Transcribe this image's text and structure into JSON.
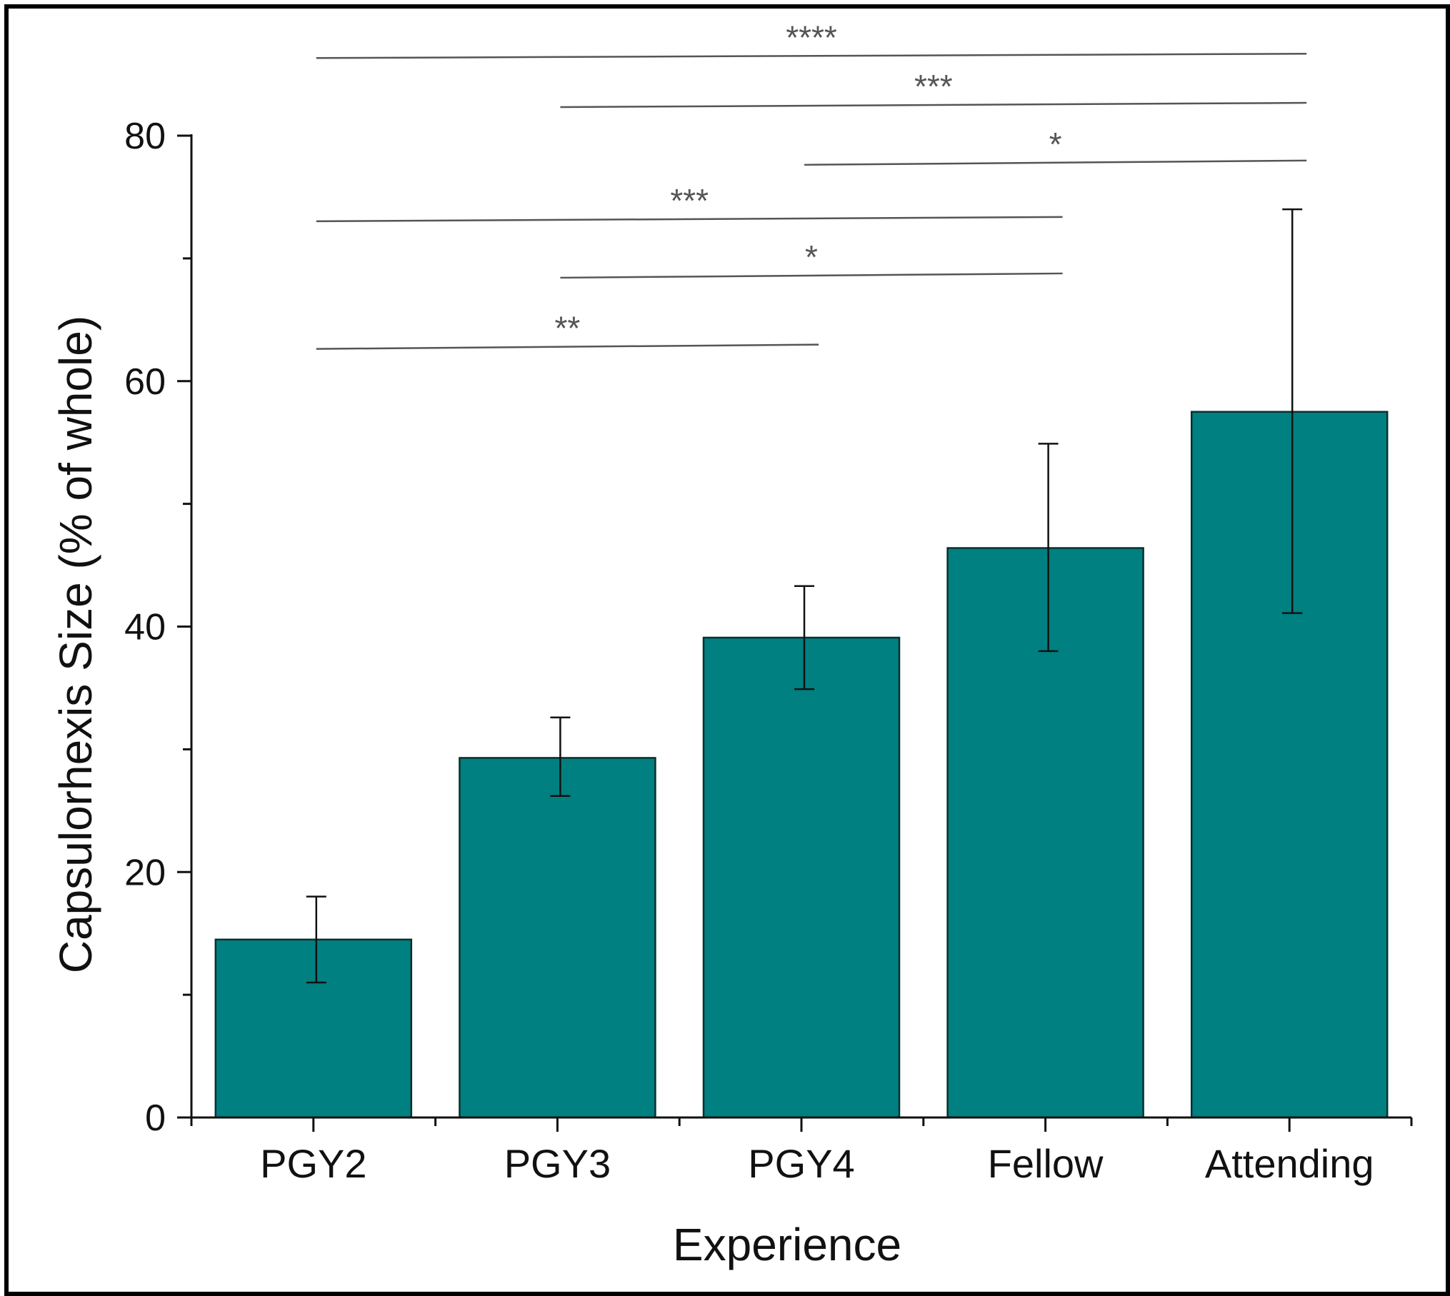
{
  "chart_data": {
    "type": "bar",
    "xlabel": "Experience",
    "ylabel": "Capsulorhexis Size (% of whole)",
    "categories": [
      "PGY2",
      "PGY3",
      "PGY4",
      "Fellow",
      "Attending"
    ],
    "values": [
      14.5,
      29.3,
      39.1,
      46.4,
      57.5
    ],
    "error_low": [
      11.0,
      26.2,
      34.9,
      38.0,
      41.1
    ],
    "error_high": [
      18.0,
      32.6,
      43.3,
      54.9,
      74.0
    ],
    "ylim": [
      0,
      80
    ],
    "yticks": [
      0,
      20,
      40,
      60,
      80
    ],
    "yticks_text": [
      "0",
      "20",
      "40",
      "60",
      "80"
    ],
    "bar_color": "#008080",
    "significance": [
      {
        "from": 0,
        "to": 4,
        "label": "****",
        "level": 86.5
      },
      {
        "from": 1,
        "to": 4,
        "label": "***",
        "level": 82.5
      },
      {
        "from": 2,
        "to": 4,
        "label": "*",
        "level": 77.8
      },
      {
        "from": 0,
        "to": 3,
        "label": "***",
        "level": 73.2
      },
      {
        "from": 1,
        "to": 3,
        "label": "*",
        "level": 68.6
      },
      {
        "from": 0,
        "to": 2,
        "label": "**",
        "level": 62.8
      }
    ]
  }
}
